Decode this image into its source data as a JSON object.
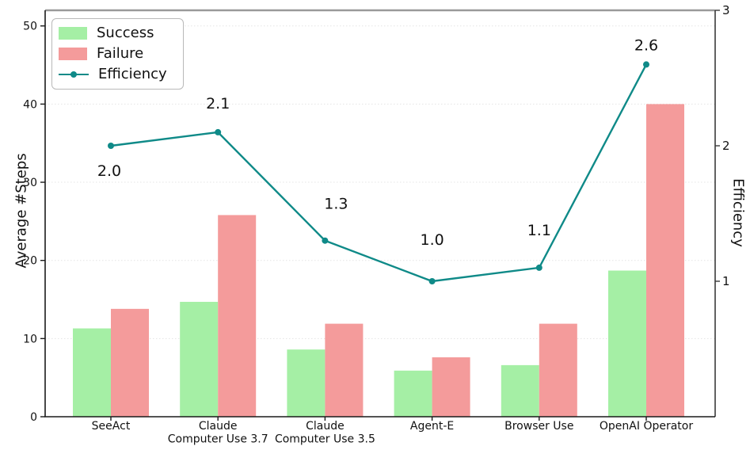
{
  "chart_data": {
    "type": "bar+line",
    "categories": [
      "SeeAct",
      "Claude\nComputer Use 3.7",
      "Claude\nComputer Use 3.5",
      "Agent-E",
      "Browser Use",
      "OpenAI Operator"
    ],
    "series": [
      {
        "name": "Success",
        "type": "bar",
        "axis": "left",
        "color": "#a5efa5",
        "values": [
          11.3,
          14.7,
          8.6,
          5.9,
          6.6,
          18.7
        ]
      },
      {
        "name": "Failure",
        "type": "bar",
        "axis": "left",
        "color": "#f49b9b",
        "values": [
          13.8,
          25.8,
          11.9,
          7.6,
          11.9,
          40.0
        ]
      },
      {
        "name": "Efficiency",
        "type": "line",
        "axis": "right",
        "color": "#0f8a88",
        "values": [
          2.0,
          2.1,
          1.3,
          1.0,
          1.1,
          2.6
        ],
        "point_labels": [
          "2.0",
          "2.1",
          "1.3",
          "1.0",
          "1.1",
          "2.6"
        ],
        "label_offsets": [
          [
            -2,
            32
          ],
          [
            0,
            -36
          ],
          [
            14,
            -46
          ],
          [
            0,
            -52
          ],
          [
            0,
            -47
          ],
          [
            0,
            -24
          ]
        ]
      }
    ],
    "left_axis": {
      "label": "Average #Steps",
      "ticks": [
        0,
        10,
        20,
        30,
        40,
        50
      ],
      "min": 0,
      "max": 52
    },
    "right_axis": {
      "label": "Efficiency",
      "ticks": [
        1,
        2,
        3
      ],
      "min": 0,
      "max": 3
    },
    "legend": {
      "position": "upper-left",
      "entries": [
        "Success",
        "Failure",
        "Efficiency"
      ]
    },
    "grid": true,
    "colors": {
      "success": "#a5efa5",
      "failure": "#f49b9b",
      "efficiency_line": "#0f8a88",
      "gridline": "#e4e4e4",
      "spine": "#1a1a1a",
      "top_spine": "#9a9a9a",
      "right_spine": "#3a3a3a",
      "text": "#111111"
    }
  }
}
